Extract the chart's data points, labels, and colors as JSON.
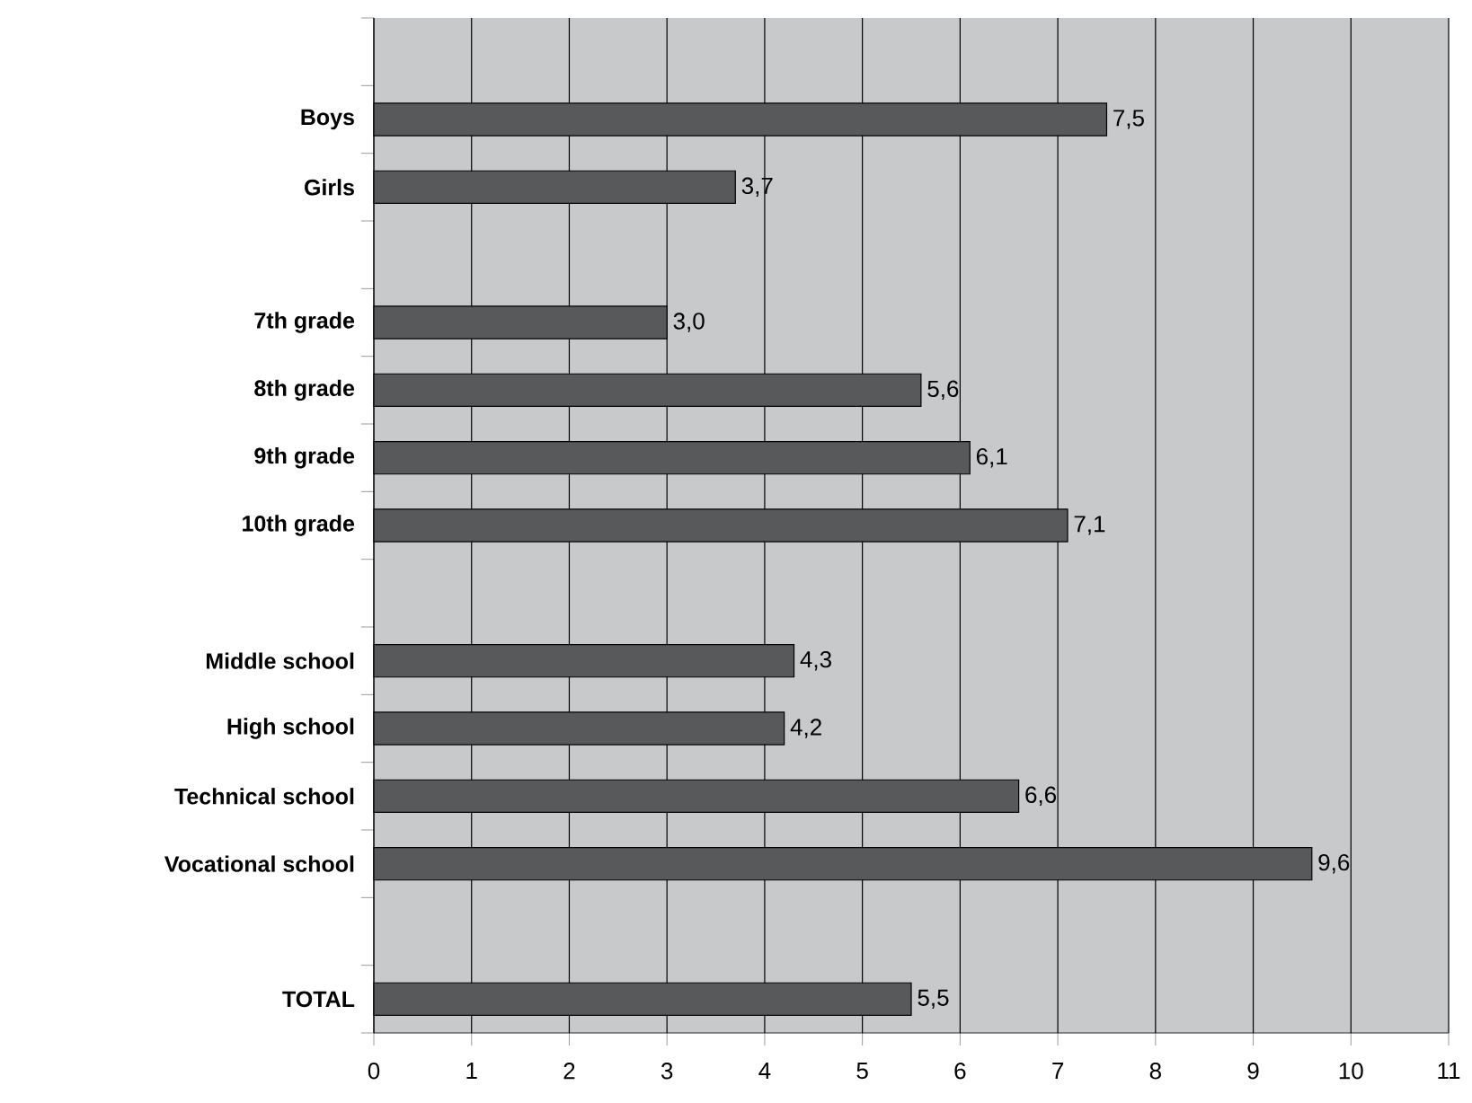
{
  "chart_data": {
    "type": "bar",
    "orientation": "horizontal",
    "categories": [
      null,
      "Boys",
      "Girls",
      null,
      "7th grade",
      "8th grade",
      "9th grade",
      "10th grade",
      null,
      "Middle school",
      "High school",
      "Technical school",
      "Vocational school",
      null,
      "TOTAL"
    ],
    "values": [
      null,
      7.5,
      3.7,
      null,
      3.0,
      5.6,
      6.1,
      7.1,
      null,
      4.3,
      4.2,
      6.6,
      9.6,
      null,
      5.5
    ],
    "value_labels": [
      null,
      "7,5",
      "3,7",
      null,
      "3,0",
      "5,6",
      "6,1",
      "7,1",
      null,
      "4,3",
      "4,2",
      "6,6",
      "9,6",
      null,
      "5,5"
    ],
    "color": "#58595b",
    "xlim": [
      0,
      11
    ],
    "xticks": [
      0,
      1,
      2,
      3,
      4,
      5,
      6,
      7,
      8,
      9,
      10,
      11
    ],
    "grid": "x"
  }
}
